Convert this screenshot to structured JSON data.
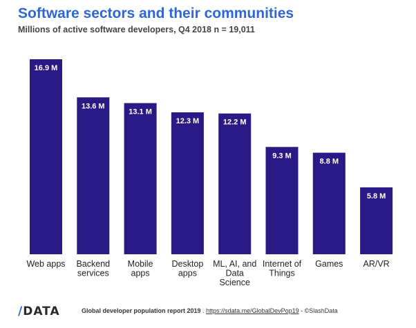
{
  "chart_data": {
    "type": "bar",
    "title": "Software sectors and their communities",
    "subtitle": "Millions of active software developers, Q4 2018 n = 19,011",
    "categories": [
      [
        "Web apps"
      ],
      [
        "Backend",
        "services"
      ],
      [
        "Mobile",
        "apps"
      ],
      [
        "Desktop",
        "apps"
      ],
      [
        "ML, AI, and",
        "Data",
        "Science"
      ],
      [
        "Internet of",
        "Things"
      ],
      [
        "Games"
      ],
      [
        "AR/VR"
      ]
    ],
    "values": [
      16.9,
      13.6,
      13.1,
      12.3,
      12.2,
      9.3,
      8.8,
      5.8
    ],
    "value_labels": [
      "16.9 M",
      "13.6 M",
      "13.1 M",
      "12.3 M",
      "12.2 M",
      "9.3 M",
      "8.8 M",
      "5.8 M"
    ],
    "ylim": [
      0,
      16.9
    ],
    "colors": {
      "bar": "#2a1a85",
      "title": "#2d66d6"
    }
  },
  "footer": {
    "logo_slash": "/",
    "logo_text": "DATA",
    "report": "Global developer population report 2019",
    "separator": " . ",
    "link": "https://sdata.me/GlobalDevPop19",
    "copyright": " - ©SlashData"
  }
}
